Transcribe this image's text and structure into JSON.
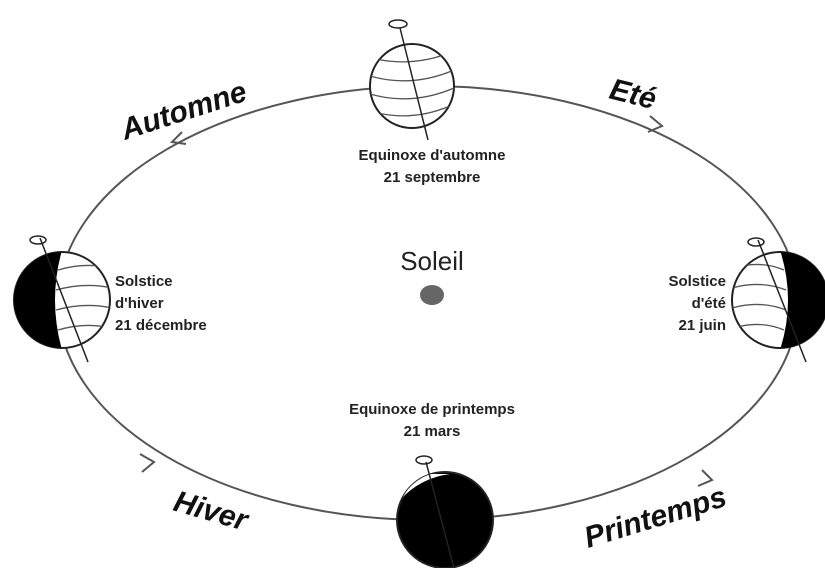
{
  "center": {
    "label": "Soleil"
  },
  "seasons": [
    "Automne",
    "Eté",
    "Hiver",
    "Printemps"
  ],
  "positions": [
    {
      "name_lines": [
        "Equinoxe d'automne"
      ],
      "date": "21 septembre"
    },
    {
      "name_lines": [
        "Solstice",
        "d'hiver"
      ],
      "date": "21 décembre"
    },
    {
      "name_lines": [
        "Solstice",
        "d'été"
      ],
      "date": "21 juin"
    },
    {
      "name_lines": [
        "Equinoxe de printemps"
      ],
      "date": "21 mars"
    }
  ]
}
